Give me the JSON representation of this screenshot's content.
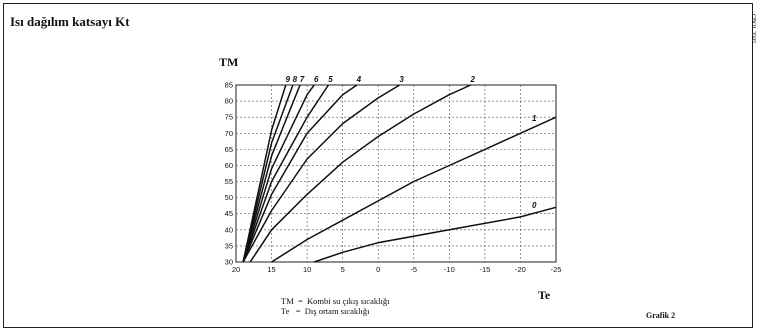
{
  "header": {
    "title": "Isı dağılım katsayı Kt",
    "code": "CBOL 3505"
  },
  "chart_data": {
    "type": "line",
    "title": "Isı dağılım katsayı Kt",
    "ylabel": "TM",
    "xlabel": "Te",
    "xlim": [
      20,
      -25
    ],
    "ylim": [
      30,
      85
    ],
    "x_ticks": [
      20,
      15,
      10,
      5,
      0,
      -5,
      -10,
      -15,
      -20,
      -25
    ],
    "x_tick_labels": [
      "20",
      "15",
      "10",
      "5",
      "0",
      "-5",
      "-10",
      "-15",
      "-20",
      "-25"
    ],
    "y_ticks": [
      30,
      35,
      40,
      45,
      50,
      55,
      60,
      65,
      70,
      75,
      80,
      85
    ],
    "y_tick_labels": [
      "30",
      "35",
      "40",
      "45",
      "50",
      "55",
      "60",
      "65",
      "70",
      "75",
      "80",
      "85"
    ],
    "grid": true,
    "series": [
      {
        "name": "0",
        "points": [
          [
            9,
            30
          ],
          [
            5,
            33
          ],
          [
            0,
            36
          ],
          [
            -10,
            40
          ],
          [
            -20,
            44
          ],
          [
            -25,
            47
          ]
        ]
      },
      {
        "name": "1",
        "points": [
          [
            15,
            30
          ],
          [
            10,
            37
          ],
          [
            5,
            43
          ],
          [
            0,
            49
          ],
          [
            -5,
            55
          ],
          [
            -10,
            60
          ],
          [
            -15,
            65
          ],
          [
            -20,
            70
          ],
          [
            -25,
            75
          ]
        ]
      },
      {
        "name": "2",
        "points": [
          [
            18,
            30
          ],
          [
            15,
            40
          ],
          [
            10,
            51
          ],
          [
            5,
            61
          ],
          [
            0,
            69
          ],
          [
            -5,
            76
          ],
          [
            -10,
            82
          ],
          [
            -13,
            85
          ]
        ]
      },
      {
        "name": "3",
        "points": [
          [
            19,
            30
          ],
          [
            15,
            46
          ],
          [
            10,
            62
          ],
          [
            5,
            73
          ],
          [
            0,
            81
          ],
          [
            -3,
            85
          ]
        ]
      },
      {
        "name": "4",
        "points": [
          [
            19,
            30
          ],
          [
            15,
            51
          ],
          [
            10,
            70
          ],
          [
            5,
            82
          ],
          [
            3,
            85
          ]
        ]
      },
      {
        "name": "5",
        "points": [
          [
            19,
            30
          ],
          [
            15,
            55
          ],
          [
            10,
            75
          ],
          [
            7,
            85
          ]
        ]
      },
      {
        "name": "6",
        "points": [
          [
            19,
            30
          ],
          [
            15,
            59
          ],
          [
            10,
            82
          ],
          [
            9,
            85
          ]
        ]
      },
      {
        "name": "7",
        "points": [
          [
            19,
            30
          ],
          [
            15,
            63
          ],
          [
            11,
            85
          ]
        ]
      },
      {
        "name": "8",
        "points": [
          [
            19,
            30
          ],
          [
            15,
            67
          ],
          [
            12,
            85
          ]
        ]
      },
      {
        "name": "9",
        "points": [
          [
            19,
            30
          ],
          [
            15,
            71
          ],
          [
            13,
            85
          ]
        ]
      }
    ]
  },
  "legend": {
    "rows": [
      "TM  =  Kombi su çıkış sıcaklığı",
      "Te   =  Dış ortam sıcaklığı"
    ]
  },
  "figure_label": "Grafik 2"
}
